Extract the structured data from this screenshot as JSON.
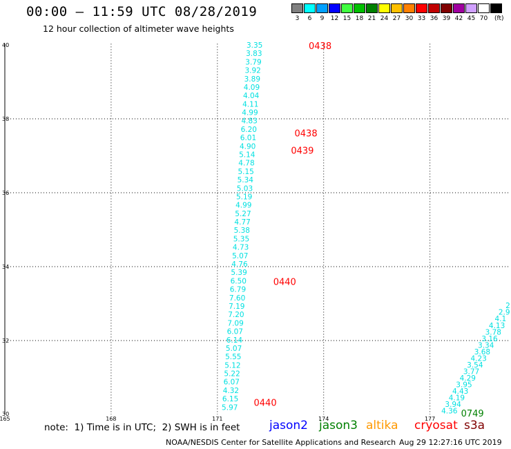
{
  "header": {
    "title": "00:00 — 11:59 UTC 08/28/2019",
    "subtitle": "12 hour collection of altimeter wave heights"
  },
  "color_scale": {
    "unit": "(ft)",
    "bins": [
      {
        "label": "3",
        "color": "#808080"
      },
      {
        "label": "6",
        "color": "#00ffff"
      },
      {
        "label": "9",
        "color": "#00a0ff"
      },
      {
        "label": "12",
        "color": "#0000ff"
      },
      {
        "label": "15",
        "color": "#40ff40"
      },
      {
        "label": "18",
        "color": "#00c000"
      },
      {
        "label": "21",
        "color": "#008000"
      },
      {
        "label": "24",
        "color": "#ffff00"
      },
      {
        "label": "27",
        "color": "#ffc000"
      },
      {
        "label": "30",
        "color": "#ff8000"
      },
      {
        "label": "33",
        "color": "#ff0000"
      },
      {
        "label": "36",
        "color": "#c00000"
      },
      {
        "label": "39",
        "color": "#800000"
      },
      {
        "label": "42",
        "color": "#a000a0"
      },
      {
        "label": "45",
        "color": "#d0a0ff"
      },
      {
        "label": "70",
        "color": "#ffffff"
      },
      {
        "label": "",
        "color": "#000000"
      }
    ]
  },
  "map": {
    "lon_ticks": [
      "165",
      "168",
      "171",
      "174",
      "177"
    ],
    "lat_ticks": [
      "30",
      "32",
      "34",
      "36",
      "38",
      "40"
    ],
    "gridline_lons": [
      168,
      171,
      174,
      177
    ],
    "gridline_lats": [
      32,
      34,
      36,
      38
    ]
  },
  "tracks": [
    {
      "name": "cryosat",
      "value_color": "#00e0e0",
      "values": [
        "3.35",
        "3.83",
        "3.79",
        "3.92",
        "3.89",
        "4.09",
        "4.04",
        "4.11",
        "4.99",
        "4.83",
        "6.20",
        "6.01",
        "4.90",
        "5.14",
        "4.78",
        "5.15",
        "5.34",
        "5.03",
        "5.19",
        "4.99",
        "5.27",
        "4.77",
        "5.38",
        "5.35",
        "4.73",
        "5.07",
        "4.76",
        "5.39",
        "6.50",
        "6.79",
        "7.60",
        "7.19",
        "7.20",
        "7.09",
        "6.07",
        "6.14",
        "5.07",
        "5.55",
        "5.12",
        "5.22",
        "6.07",
        "4.32",
        "6.15",
        "5.97"
      ],
      "lat_start": 40.0,
      "lat_end": 30.2,
      "lon_start": 172.05,
      "lon_end": 171.35
    },
    {
      "name": "s3a",
      "value_color": "#00e0e0",
      "values": [
        "4.36",
        "3.94",
        "4.19",
        "4.43",
        "3.95",
        "4.29",
        "3.77",
        "3.54",
        "4.23",
        "3.68",
        "3.34",
        "3.16",
        "3.78",
        "4.13",
        "4.1",
        "2.9",
        "2"
      ],
      "lat_start": 30.1,
      "lat_end": 32.95,
      "lon_start": 177.55,
      "lon_end": 179.2
    }
  ],
  "time_labels": [
    {
      "text": "0438",
      "color": "#ff0000",
      "lon": 173.9,
      "lat": 39.98
    },
    {
      "text": "0438",
      "color": "#ff0000",
      "lon": 173.5,
      "lat": 37.62
    },
    {
      "text": "0439",
      "color": "#ff0000",
      "lon": 173.4,
      "lat": 37.15
    },
    {
      "text": "0440",
      "color": "#ff0000",
      "lon": 172.9,
      "lat": 33.6
    },
    {
      "text": "0440",
      "color": "#ff0000",
      "lon": 172.35,
      "lat": 30.33
    },
    {
      "text": "0749",
      "color": "#008000",
      "lon": 178.2,
      "lat": 30.04
    }
  ],
  "footer": {
    "note": "note:  1) Time is in UTC;  2) SWH is in feet",
    "satellites": [
      {
        "name": "jason2",
        "color": "#0000ff"
      },
      {
        "name": "jason3",
        "color": "#008000"
      },
      {
        "name": "altika",
        "color": "#ff9900"
      },
      {
        "name": "cryosat",
        "color": "#ff0000"
      },
      {
        "name": "s3a",
        "color": "#800000"
      }
    ],
    "credit": "NOAA/NESDIS Center for Satellite Applications and Research",
    "timestamp": "Aug 29 12:27:16 UTC 2019"
  }
}
